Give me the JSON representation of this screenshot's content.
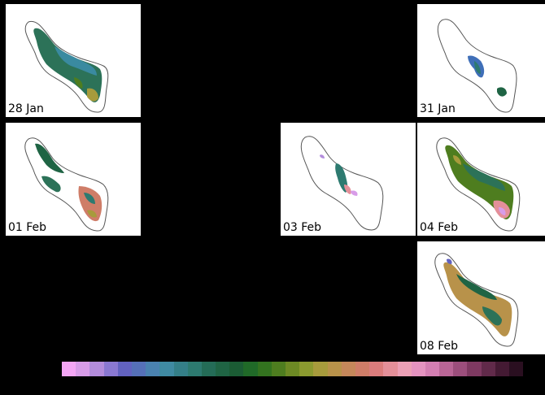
{
  "panels": [
    {
      "id": "p28jan",
      "label": "28 Jan"
    },
    {
      "id": "p31jan",
      "label": "31 Jan"
    },
    {
      "id": "p01feb",
      "label": "01 Feb"
    },
    {
      "id": "p03feb",
      "label": "03 Feb"
    },
    {
      "id": "p04feb",
      "label": "04 Feb"
    },
    {
      "id": "p08feb",
      "label": "08 Feb"
    }
  ],
  "colorbar": {
    "colors": [
      "#f4a6f5",
      "#d89ce8",
      "#b38cdc",
      "#8a78d2",
      "#6262c0",
      "#5570b8",
      "#4a82b0",
      "#3f8aa2",
      "#347f88",
      "#2d7a70",
      "#246c57",
      "#1f6444",
      "#1b5c34",
      "#206a28",
      "#33731f",
      "#4e7d1f",
      "#6d8a24",
      "#8b9a2f",
      "#a79b3c",
      "#b8924a",
      "#c5875a",
      "#cf7d68",
      "#db7c7c",
      "#e48f99",
      "#eca0b6",
      "#e593c0",
      "#d47eb2",
      "#b96596",
      "#9c4e7c",
      "#7e3961",
      "#612a4a",
      "#441a33",
      "#2a0f20"
    ]
  }
}
